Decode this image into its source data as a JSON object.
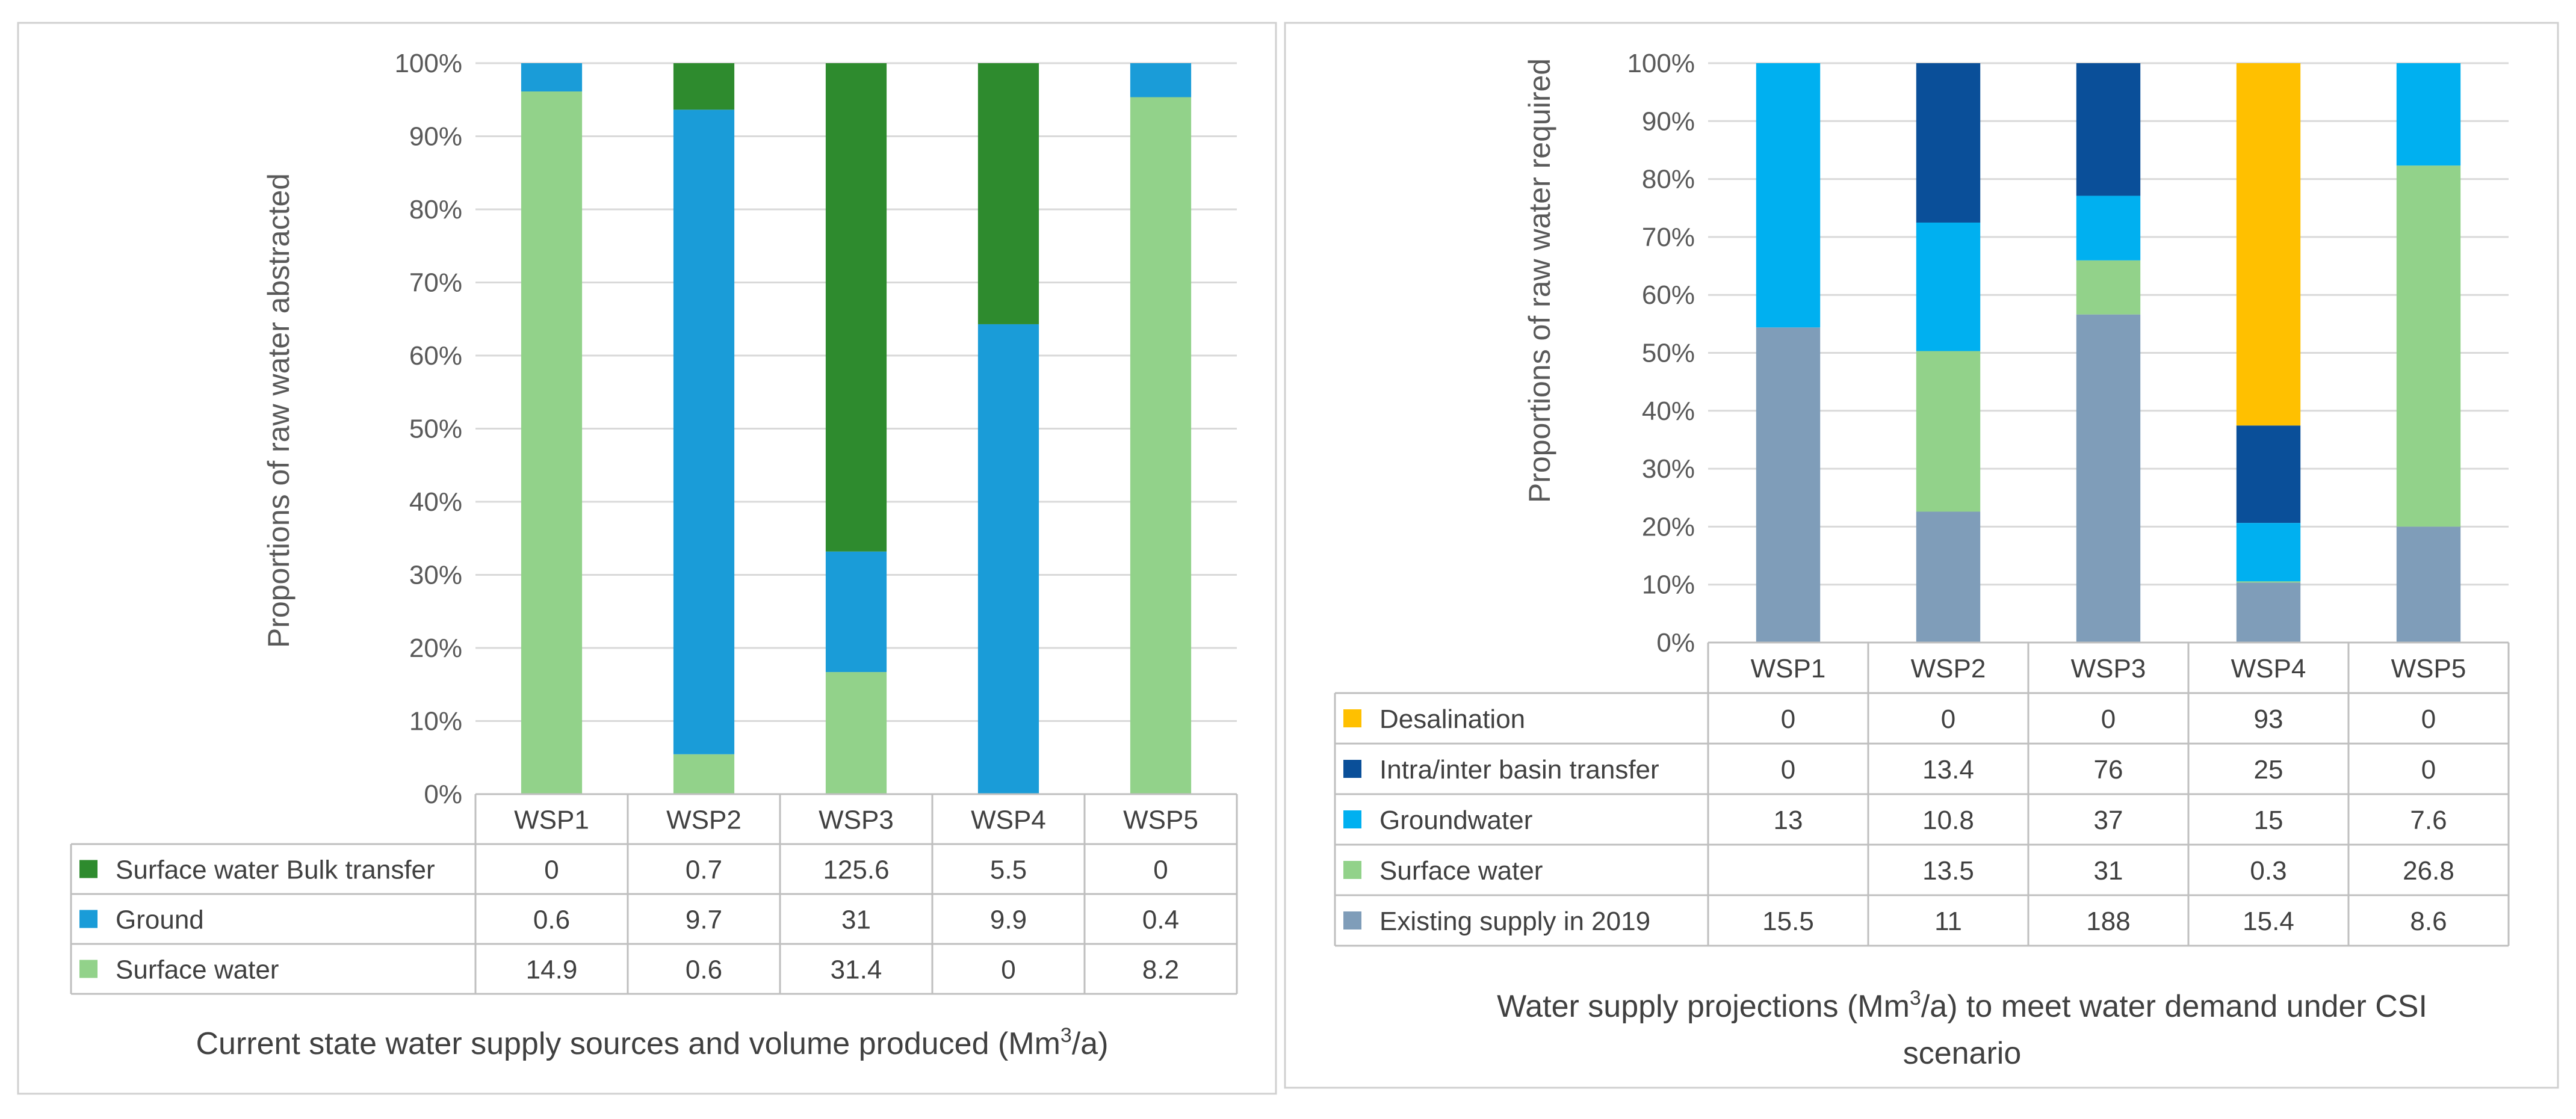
{
  "chart_data": [
    {
      "type": "bar",
      "stacked": true,
      "normalized": true,
      "categories": [
        "WSP1",
        "WSP2",
        "WSP3",
        "WSP4",
        "WSP5"
      ],
      "series": [
        {
          "name": "Surface water",
          "color": "#92d28a",
          "values": [
            14.9,
            0.6,
            31.4,
            0,
            8.2
          ],
          "labels": [
            "14.9",
            "0.6",
            "31.4",
            "0",
            "8.2"
          ]
        },
        {
          "name": "Ground",
          "color": "#1a9cd8",
          "values": [
            0.6,
            9.7,
            31,
            9.9,
            0.4
          ],
          "labels": [
            "0.6",
            "9.7",
            "31",
            "9.9",
            "0.4"
          ]
        },
        {
          "name": "Surface water Bulk transfer",
          "color": "#2e8b2e",
          "values": [
            0,
            0.7,
            125.6,
            5.5,
            0
          ],
          "labels": [
            "0",
            "0.7",
            "125.6",
            "5.5",
            "0"
          ]
        }
      ],
      "yticks": [
        "0%",
        "10%",
        "20%",
        "30%",
        "40%",
        "50%",
        "60%",
        "70%",
        "80%",
        "90%",
        "100%"
      ],
      "ylabel": "Proportions of raw water abstracted",
      "caption": {
        "text": "Current state water supply sources and volume produced (Mm",
        "sup": "3",
        "tail": "/a)"
      },
      "ylim": [
        0,
        100
      ],
      "grid": true,
      "legend": "data-table"
    },
    {
      "type": "bar",
      "stacked": true,
      "normalized": true,
      "categories": [
        "WSP1",
        "WSP2",
        "WSP3",
        "WSP4",
        "WSP5"
      ],
      "series": [
        {
          "name": "Existing supply in 2019",
          "color": "#7f9db9",
          "values": [
            15.5,
            11,
            188,
            15.4,
            8.6
          ],
          "labels": [
            "15.5",
            "11",
            "188",
            "15.4",
            "8.6"
          ]
        },
        {
          "name": "Surface water",
          "color": "#92d28a",
          "values": [
            0,
            13.5,
            31,
            0.3,
            26.8
          ],
          "labels": [
            "",
            "13.5",
            "31",
            "0.3",
            "26.8"
          ]
        },
        {
          "name": "Groundwater",
          "color": "#00b0f0",
          "values": [
            13,
            10.8,
            37,
            15,
            7.6
          ],
          "labels": [
            "13",
            "10.8",
            "37",
            "15",
            "7.6"
          ]
        },
        {
          "name": "Intra/inter basin transfer",
          "color": "#0a4f99",
          "values": [
            0,
            13.4,
            76,
            25,
            0
          ],
          "labels": [
            "0",
            "13.4",
            "76",
            "25",
            "0"
          ]
        },
        {
          "name": "Desalination",
          "color": "#ffc000",
          "values": [
            0,
            0,
            0,
            93,
            0
          ],
          "labels": [
            "0",
            "0",
            "0",
            "93",
            "0"
          ]
        }
      ],
      "yticks": [
        "0%",
        "10%",
        "20%",
        "30%",
        "40%",
        "50%",
        "60%",
        "70%",
        "80%",
        "90%",
        "100%"
      ],
      "ylabel": "Proportions of raw water required",
      "caption": {
        "line1": "Water supply projections (Mm",
        "sup": "3",
        "line1_tail": "/a) to meet water demand under CSI",
        "line2": "scenario"
      },
      "ylim": [
        0,
        100
      ],
      "grid": true,
      "legend": "data-table"
    }
  ]
}
